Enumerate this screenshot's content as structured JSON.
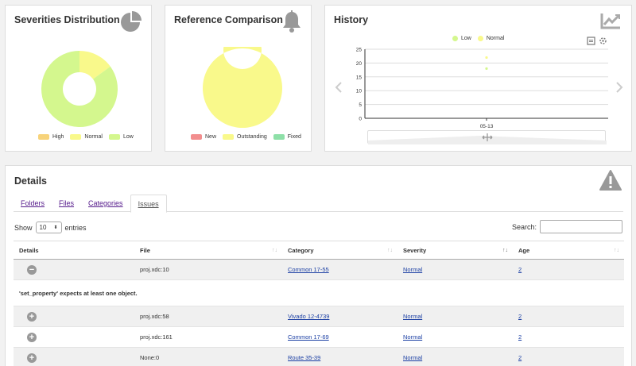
{
  "severities": {
    "title": "Severities Distribution",
    "icon": "pie-chart-icon",
    "legend": [
      {
        "label": "High",
        "color": "#f7d37a"
      },
      {
        "label": "Normal",
        "color": "#f9f98b"
      },
      {
        "label": "Low",
        "color": "#d4f78e"
      }
    ]
  },
  "reference": {
    "title": "Reference Comparison",
    "icon": "bell-icon",
    "legend": [
      {
        "label": "New",
        "color": "#f28e8e"
      },
      {
        "label": "Outstanding",
        "color": "#f9f98b"
      },
      {
        "label": "Fixed",
        "color": "#8ee0a8"
      }
    ]
  },
  "history": {
    "title": "History",
    "icon": "line-chart-icon",
    "legend": [
      {
        "label": "Low",
        "color": "#d4f78e"
      },
      {
        "label": "Normal",
        "color": "#f9f98b"
      }
    ]
  },
  "chart_data": [
    {
      "type": "pie",
      "categories": [
        "High",
        "Normal",
        "Low"
      ],
      "values": [
        0,
        15,
        85
      ],
      "colors": [
        "#f7d37a",
        "#f9f98b",
        "#d4f78e"
      ],
      "legend": "bottom"
    },
    {
      "type": "pie",
      "categories": [
        "New",
        "Outstanding",
        "Fixed"
      ],
      "values": [
        0,
        100,
        0
      ],
      "colors": [
        "#f28e8e",
        "#f9f98b",
        "#8ee0a8"
      ],
      "legend": "bottom"
    },
    {
      "type": "scatter",
      "categories": [
        "05-13"
      ],
      "series": [
        {
          "name": "Low",
          "values": [
            18
          ],
          "color": "#d4f78e"
        },
        {
          "name": "Normal",
          "values": [
            22
          ],
          "color": "#f9f98b"
        }
      ],
      "yticks": [
        "0",
        "5",
        "10",
        "15",
        "20",
        "25"
      ],
      "ylim": [
        0,
        25
      ],
      "grid": true,
      "legend": "top"
    }
  ],
  "details": {
    "title": "Details",
    "icon": "warning-icon",
    "tabs": [
      {
        "label": "Folders",
        "active": false
      },
      {
        "label": "Files",
        "active": false
      },
      {
        "label": "Categories",
        "active": false
      },
      {
        "label": "Issues",
        "active": true
      }
    ],
    "show_label": "Show",
    "entries_value": "10",
    "entries_label": "entries",
    "search_label": "Search:",
    "columns": [
      "Details",
      "File",
      "Category",
      "Severity",
      "Age"
    ],
    "rows": [
      {
        "control": "−",
        "file": "proj.xdc:10",
        "category": "Common 17-55",
        "severity": "Normal",
        "age": "2"
      },
      {
        "detail": "'set_property' expects at least one object."
      },
      {
        "control": "+",
        "file": "proj.xdc:58",
        "category": "Vivado 12-4739",
        "severity": "Normal",
        "age": "2"
      },
      {
        "control": "+",
        "file": "proj.xdc:161",
        "category": "Common 17-69",
        "severity": "Normal",
        "age": "2"
      },
      {
        "control": "+",
        "file": "None:0",
        "category": "Route 35-39",
        "severity": "Normal",
        "age": "2"
      }
    ]
  }
}
